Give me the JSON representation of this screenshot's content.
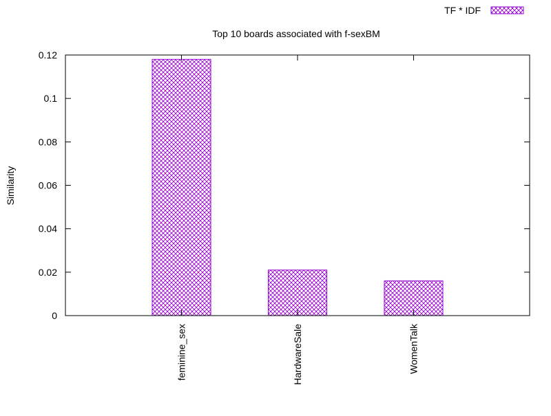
{
  "chart_data": {
    "type": "bar",
    "title": "Top 10 boards associated with f-sexBM",
    "ylabel": "Similarity",
    "xlabel": "",
    "categories": [
      "feminine_sex",
      "HardwareSale",
      "WomenTalk"
    ],
    "series": [
      {
        "name": "TF * IDF",
        "values": [
          0.118,
          0.021,
          0.016
        ]
      }
    ],
    "ylim": [
      0,
      0.12
    ],
    "yticks": [
      "0",
      "0.02",
      "0.04",
      "0.06",
      "0.08",
      "0.1",
      "0.12"
    ],
    "grid": false,
    "legend_position": "top-right",
    "bar_color": "#9400d3",
    "bar_pattern": "crosshatch"
  }
}
